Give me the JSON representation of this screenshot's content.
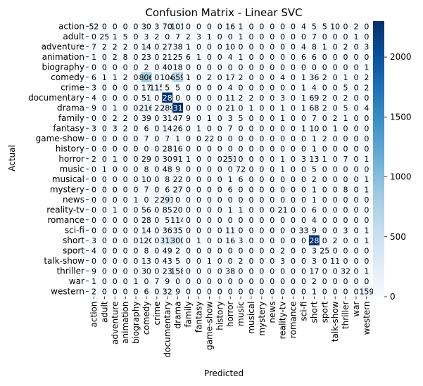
{
  "chart_data": {
    "type": "heatmap",
    "title": "Confusion Matrix - Linear SVC",
    "xlabel": "Predicted",
    "ylabel": "Actual",
    "labels": [
      "action",
      "adult",
      "adventure",
      "animation",
      "biography",
      "comedy",
      "crime",
      "documentary",
      "drama",
      "family",
      "fantasy",
      "game-show",
      "history",
      "horror",
      "music",
      "musical",
      "mystery",
      "news",
      "reality-tv",
      "romance",
      "sci-fi",
      "short",
      "sport",
      "talk-show",
      "thriller",
      "war",
      "western"
    ],
    "colorbar": {
      "min": 0,
      "max": 2300,
      "ticks": [
        0,
        500,
        1000,
        1500,
        2000
      ]
    },
    "colormap": [
      "#f7fbff",
      "#deebf7",
      "#c6dbef",
      "#9ecae1",
      "#6baed6",
      "#4292c6",
      "#2171b5",
      "#08519c",
      "#08306b"
    ],
    "matrix": [
      [
        52,
        0,
        0,
        0,
        0,
        30,
        3,
        70,
        101,
        0,
        0,
        0,
        0,
        16,
        1,
        0,
        0,
        0,
        0,
        0,
        4,
        5,
        5,
        10,
        0,
        2,
        0
      ],
      [
        0,
        25,
        1,
        5,
        0,
        3,
        2,
        0,
        7,
        2,
        3,
        1,
        0,
        0,
        1,
        0,
        0,
        0,
        0,
        0,
        0,
        7,
        0,
        0,
        0,
        1,
        0
      ],
      [
        7,
        2,
        2,
        2,
        0,
        14,
        0,
        27,
        38,
        1,
        0,
        0,
        0,
        10,
        0,
        0,
        0,
        0,
        0,
        0,
        4,
        8,
        1,
        0,
        2,
        0,
        3
      ],
      [
        1,
        0,
        2,
        8,
        0,
        23,
        0,
        21,
        25,
        6,
        1,
        0,
        0,
        4,
        1,
        0,
        0,
        0,
        0,
        0,
        6,
        6,
        0,
        0,
        0,
        0,
        0
      ],
      [
        0,
        0,
        0,
        0,
        0,
        2,
        0,
        40,
        18,
        0,
        0,
        0,
        0,
        0,
        0,
        0,
        0,
        0,
        0,
        0,
        0,
        0,
        0,
        0,
        0,
        0,
        1
      ],
      [
        6,
        1,
        1,
        2,
        0,
        806,
        0,
        104,
        659,
        1,
        0,
        2,
        0,
        17,
        2,
        0,
        0,
        0,
        4,
        0,
        1,
        36,
        2,
        0,
        1,
        0,
        2
      ],
      [
        3,
        0,
        0,
        0,
        0,
        17,
        115,
        5,
        5,
        0,
        0,
        0,
        0,
        4,
        0,
        0,
        0,
        0,
        0,
        0,
        1,
        4,
        0,
        0,
        5,
        0,
        2
      ],
      [
        4,
        0,
        0,
        0,
        0,
        51,
        0,
        2281,
        0,
        0,
        0,
        0,
        0,
        11,
        2,
        2,
        0,
        0,
        3,
        0,
        1,
        69,
        2,
        0,
        2,
        0,
        0
      ],
      [
        9,
        0,
        1,
        0,
        0,
        216,
        2,
        280,
        2310,
        0,
        0,
        0,
        0,
        21,
        0,
        1,
        0,
        0,
        1,
        0,
        1,
        68,
        2,
        0,
        5,
        0,
        4
      ],
      [
        0,
        0,
        2,
        2,
        0,
        39,
        0,
        31,
        47,
        9,
        0,
        1,
        0,
        3,
        5,
        0,
        0,
        0,
        1,
        0,
        0,
        7,
        0,
        2,
        1,
        0,
        0
      ],
      [
        3,
        0,
        3,
        2,
        0,
        6,
        0,
        14,
        26,
        0,
        1,
        0,
        0,
        7,
        0,
        0,
        0,
        0,
        0,
        0,
        1,
        10,
        0,
        1,
        0,
        0,
        0
      ],
      [
        0,
        0,
        0,
        0,
        0,
        7,
        0,
        7,
        1,
        0,
        0,
        22,
        0,
        0,
        0,
        0,
        0,
        0,
        0,
        0,
        0,
        1,
        2,
        0,
        0,
        0,
        0
      ],
      [
        0,
        0,
        0,
        0,
        0,
        0,
        0,
        28,
        16,
        0,
        0,
        0,
        0,
        0,
        0,
        0,
        0,
        0,
        0,
        0,
        0,
        1,
        0,
        0,
        0,
        0,
        0
      ],
      [
        2,
        0,
        1,
        0,
        0,
        29,
        0,
        30,
        91,
        1,
        0,
        0,
        0,
        251,
        0,
        0,
        0,
        0,
        1,
        0,
        3,
        13,
        1,
        0,
        7,
        0,
        1
      ],
      [
        0,
        1,
        0,
        0,
        0,
        8,
        0,
        48,
        9,
        0,
        0,
        0,
        0,
        0,
        72,
        0,
        0,
        0,
        1,
        0,
        0,
        5,
        0,
        0,
        0,
        0,
        0
      ],
      [
        0,
        0,
        0,
        0,
        0,
        10,
        0,
        8,
        22,
        0,
        0,
        0,
        0,
        1,
        6,
        0,
        0,
        0,
        0,
        0,
        0,
        2,
        0,
        0,
        0,
        0,
        1
      ],
      [
        0,
        0,
        0,
        0,
        0,
        7,
        0,
        6,
        27,
        0,
        0,
        0,
        0,
        6,
        0,
        0,
        0,
        0,
        0,
        0,
        0,
        1,
        0,
        0,
        8,
        0,
        1
      ],
      [
        0,
        0,
        0,
        0,
        1,
        0,
        2,
        291,
        0,
        0,
        0,
        0,
        0,
        0,
        0,
        0,
        0,
        0,
        0,
        0,
        0,
        1,
        0,
        0,
        0,
        0,
        0
      ],
      [
        0,
        0,
        1,
        0,
        0,
        56,
        0,
        85,
        20,
        0,
        0,
        0,
        0,
        1,
        1,
        0,
        0,
        0,
        21,
        0,
        0,
        6,
        0,
        0,
        0,
        0,
        0
      ],
      [
        0,
        0,
        0,
        0,
        0,
        28,
        0,
        5,
        114,
        0,
        0,
        0,
        0,
        0,
        0,
        0,
        0,
        0,
        0,
        0,
        0,
        4,
        0,
        0,
        0,
        0,
        0
      ],
      [
        0,
        0,
        0,
        0,
        0,
        14,
        0,
        36,
        35,
        0,
        0,
        0,
        0,
        11,
        0,
        0,
        0,
        0,
        0,
        0,
        33,
        9,
        0,
        0,
        3,
        0,
        1
      ],
      [
        3,
        0,
        0,
        0,
        0,
        120,
        0,
        313,
        300,
        0,
        1,
        0,
        0,
        16,
        3,
        0,
        0,
        0,
        0,
        0,
        0,
        2280,
        0,
        2,
        0,
        0,
        1
      ],
      [
        4,
        0,
        0,
        0,
        0,
        8,
        0,
        49,
        2,
        0,
        0,
        0,
        0,
        0,
        0,
        0,
        0,
        0,
        2,
        0,
        0,
        3,
        25,
        0,
        0,
        0,
        0
      ],
      [
        0,
        0,
        0,
        0,
        0,
        13,
        0,
        43,
        5,
        0,
        0,
        1,
        0,
        0,
        2,
        0,
        0,
        0,
        3,
        0,
        0,
        3,
        0,
        11,
        0,
        0,
        0
      ],
      [
        9,
        0,
        0,
        0,
        0,
        30,
        0,
        23,
        158,
        0,
        0,
        0,
        0,
        38,
        0,
        0,
        0,
        0,
        0,
        0,
        0,
        17,
        0,
        0,
        32,
        0,
        1
      ],
      [
        1,
        0,
        0,
        0,
        1,
        0,
        7,
        9,
        0,
        0,
        0,
        0,
        0,
        0,
        0,
        0,
        0,
        0,
        0,
        0,
        0,
        2,
        0,
        0,
        0,
        0,
        0
      ],
      [
        2,
        0,
        0,
        0,
        0,
        6,
        0,
        32,
        9,
        0,
        0,
        0,
        0,
        0,
        0,
        0,
        0,
        0,
        0,
        0,
        0,
        1,
        0,
        0,
        0,
        0,
        159
      ]
    ]
  }
}
